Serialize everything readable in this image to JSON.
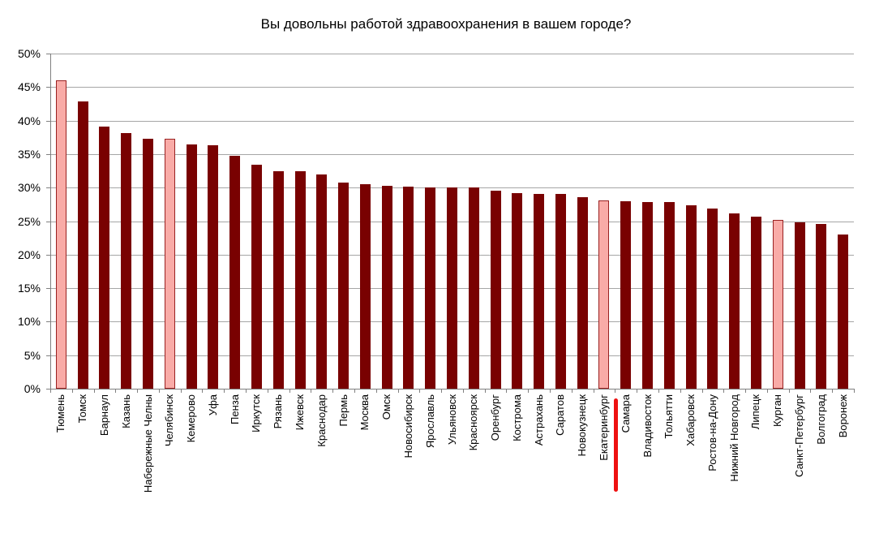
{
  "chart_data": {
    "type": "bar",
    "title": "Вы довольны работой здравоохранения в вашем городе?",
    "categories": [
      "Тюмень",
      "Томск",
      "Барнаул",
      "Казань",
      "Набережные Челны",
      "Челябинск",
      "Кемерово",
      "Уфа",
      "Пенза",
      "Иркутск",
      "Рязань",
      "Ижевск",
      "Краснодар",
      "Пермь",
      "Москва",
      "Омск",
      "Новосибирск",
      "Ярославль",
      "Ульяновск",
      "Красноярск",
      "Оренбург",
      "Кострома",
      "Астрахань",
      "Саратов",
      "Новокузнецк",
      "Екатеринбург",
      "Самара",
      "Владивосток",
      "Тольятти",
      "Хабаровск",
      "Ростов-на-Дону",
      "Нижний Новгород",
      "Липецк",
      "Курган",
      "Санкт-Петербург",
      "Волгоград",
      "Воронеж"
    ],
    "values": [
      46.0,
      42.9,
      39.1,
      38.1,
      37.3,
      37.3,
      36.4,
      36.3,
      34.7,
      33.4,
      32.4,
      32.4,
      32.0,
      30.7,
      30.5,
      30.3,
      30.1,
      30.0,
      30.0,
      30.0,
      29.5,
      29.2,
      29.1,
      29.1,
      28.6,
      28.1,
      28.0,
      27.9,
      27.9,
      27.4,
      26.9,
      26.2,
      25.7,
      25.2,
      24.8,
      24.6,
      23.0
    ],
    "value_unit": "%",
    "highlighted_categories": [
      "Тюмень",
      "Челябинск",
      "Екатеринбург",
      "Курган"
    ],
    "marker_under_category": "Екатеринбург",
    "ylim": [
      0,
      50
    ],
    "ytick_step": 5,
    "ytick_labels": [
      "0%",
      "5%",
      "10%",
      "15%",
      "20%",
      "25%",
      "30%",
      "35%",
      "40%",
      "45%",
      "50%"
    ],
    "grid": true,
    "legend": "none",
    "xlabel": "",
    "ylabel": "",
    "colors": {
      "bar_fill": "#790101",
      "highlight_fill": "#f9aba7",
      "highlight_border": "#9a2121",
      "marker_line": "#ee1111",
      "gridline": "#a6a6a6",
      "axis": "#808080",
      "text": "#000000",
      "background": "#ffffff"
    }
  }
}
